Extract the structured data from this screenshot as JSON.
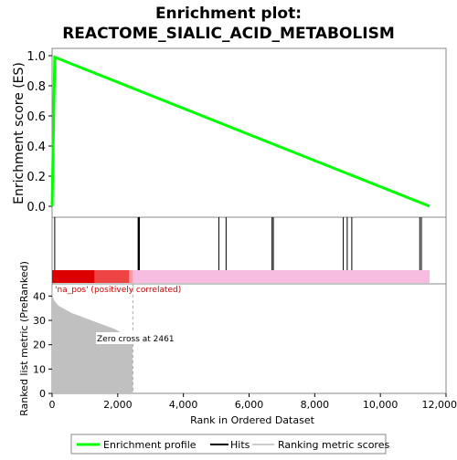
{
  "chart_data": {
    "type": "line",
    "title_line1": "Enrichment plot:",
    "title_line2": "REACTOME_SIALIC_ACID_METABOLISM",
    "top_panel": {
      "ylabel": "Enrichment score (ES)",
      "ylim": [
        0.0,
        1.0
      ],
      "yticks": [
        "0.0",
        "0.2",
        "0.4",
        "0.6",
        "0.8",
        "1.0"
      ],
      "series": [
        {
          "name": "Enrichment profile",
          "color": "#00ff00",
          "x": [
            0,
            80,
            11500
          ],
          "y": [
            0.0,
            0.99,
            0.0
          ]
        }
      ]
    },
    "hits": {
      "color": "#000000",
      "positions": [
        80,
        2620,
        2640,
        2660,
        5080,
        5300,
        6700,
        6740,
        8870,
        8990,
        9130,
        11200,
        11250
      ]
    },
    "color_bar": {
      "segments": [
        {
          "from": 0,
          "to": 1300,
          "color": "#dd0000"
        },
        {
          "from": 1300,
          "to": 2350,
          "color": "#ee4444"
        },
        {
          "from": 2350,
          "to": 2461,
          "color": "#f59aa8"
        },
        {
          "from": 2461,
          "to": 11500,
          "color": "#f7bde0"
        }
      ],
      "annotation": "'na_pos' (positively correlated)"
    },
    "bottom_panel": {
      "ylabel": "Ranked list metric (PreRanked)",
      "ylim": [
        0,
        45
      ],
      "yticks": [
        "0",
        "10",
        "20",
        "30",
        "40"
      ],
      "xlabel": "Rank in Ordered Dataset",
      "xlim": [
        0,
        12000
      ],
      "xticks": [
        "0",
        "2,000",
        "4,000",
        "6,000",
        "8,000",
        "10,000",
        "12,000"
      ],
      "zero_cross_label": "Zero cross at 2461",
      "zero_cross": 2461,
      "fill_color": "#c0c0c0",
      "metric": {
        "x": [
          0,
          20,
          50,
          100,
          200,
          400,
          600,
          800,
          1000,
          1300,
          1600,
          1900,
          2100,
          2300,
          2400,
          2450,
          2461
        ],
        "y": [
          45,
          40,
          38.5,
          37.5,
          36,
          34.5,
          33,
          32,
          31,
          29.5,
          28,
          26.5,
          25,
          23.5,
          22.5,
          21,
          0
        ]
      }
    },
    "legend": {
      "items": [
        {
          "label": "Enrichment profile",
          "color": "#00ff00"
        },
        {
          "label": "Hits",
          "color": "#000000"
        },
        {
          "label": "Ranking metric scores",
          "color": "#cccccc"
        }
      ]
    }
  }
}
